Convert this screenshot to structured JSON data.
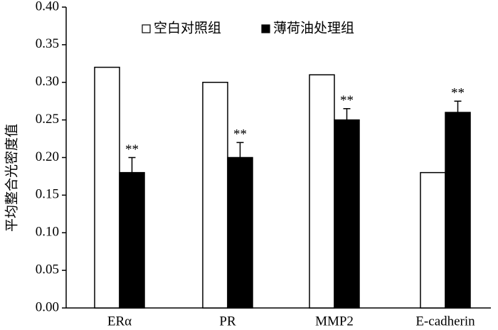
{
  "chart_data": {
    "type": "bar",
    "y_label": "平均整合光密度值",
    "categories": [
      "ERα",
      "PR",
      "MMP2",
      "E-cadherin"
    ],
    "series": [
      {
        "name": "空白对照组",
        "color": "#ffffff",
        "values": [
          0.32,
          0.3,
          0.31,
          0.18
        ]
      },
      {
        "name": "薄荷油处理组",
        "color": "#000000",
        "values": [
          0.18,
          0.2,
          0.25,
          0.26
        ],
        "errors": [
          0.02,
          0.02,
          0.015,
          0.015
        ],
        "significance": [
          "**",
          "**",
          "**",
          "**"
        ]
      }
    ],
    "ylim": [
      0,
      0.4
    ],
    "yticks": [
      {
        "value": 0,
        "label": "0.00"
      },
      {
        "value": 0.05,
        "label": "0.05"
      },
      {
        "value": 0.1,
        "label": "0.10"
      },
      {
        "value": 0.15,
        "label": "0.15"
      },
      {
        "value": 0.2,
        "label": "0.20"
      },
      {
        "value": 0.25,
        "label": "0.25"
      },
      {
        "value": 0.3,
        "label": "0.30"
      },
      {
        "value": 0.35,
        "label": "0.35"
      },
      {
        "value": 0.4,
        "label": "0.40"
      }
    ],
    "grid": false
  }
}
